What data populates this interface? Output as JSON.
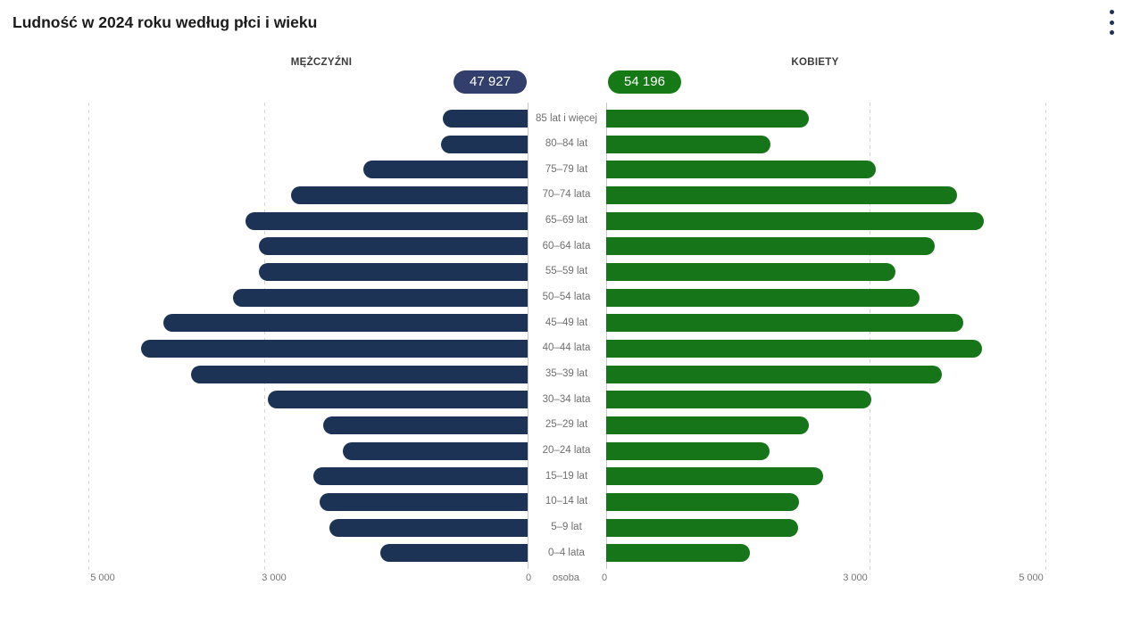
{
  "header": {
    "title": "Ludność w 2024 roku według płci i wieku",
    "menu_icon": "kebab-menu"
  },
  "pyramid": {
    "male": {
      "header": "MĘŻCZYŹNI",
      "total_label": "47 927"
    },
    "female": {
      "header": "KOBIETY",
      "total_label": "54 196"
    }
  },
  "chart_data": {
    "type": "bar",
    "variant": "population-pyramid",
    "title": "Ludność w 2024 roku według płci i wieku",
    "unit_label": "osoba",
    "categories": [
      "85 lat i więcej",
      "80–84 lat",
      "75–79 lat",
      "70–74 lata",
      "65–69 lat",
      "60–64 lata",
      "55–59 lat",
      "50–54 lata",
      "45–49 lat",
      "40–44 lata",
      "35–39 lat",
      "30–34 lata",
      "25–29 lat",
      "20–24 lata",
      "15–19 lat",
      "10–14 lat",
      "5–9 lat",
      "0–4 lata"
    ],
    "series": [
      {
        "name": "MĘŻCZYŹNI",
        "total": 47927,
        "color": "#1d3355",
        "values": [
          970,
          990,
          1870,
          2690,
          3210,
          3060,
          3060,
          3350,
          4150,
          4400,
          3830,
          2960,
          2330,
          2100,
          2440,
          2370,
          2260,
          1680
        ]
      },
      {
        "name": "KOBIETY",
        "total": 54196,
        "color": "#177519",
        "values": [
          2310,
          1870,
          3070,
          3990,
          4300,
          3740,
          3290,
          3570,
          4070,
          4280,
          3820,
          3020,
          2310,
          1860,
          2470,
          2200,
          2190,
          1640
        ]
      }
    ],
    "axes": {
      "max": 5000,
      "gridline_values": [
        3000,
        5000
      ],
      "left_ticks": [
        {
          "label": "5 000",
          "value": 5000
        },
        {
          "label": "3 000",
          "value": 3000
        },
        {
          "label": "0",
          "value": 0
        }
      ],
      "right_ticks": [
        {
          "label": "0",
          "value": 0
        },
        {
          "label": "3 000",
          "value": 3000
        },
        {
          "label": "5 000",
          "value": 5000
        }
      ]
    },
    "legend_position": "top",
    "grid": true,
    "colors": {
      "male_bar": "#1d3355",
      "female_bar": "#177519",
      "male_badge": "#323e6b",
      "female_badge": "#157a15",
      "gridline": "#d5d5d5",
      "axis_line": "#c8c8c8",
      "label_text": "#6f6f6f",
      "tick_text": "#757575",
      "title_text": "#1b1b1b"
    }
  }
}
